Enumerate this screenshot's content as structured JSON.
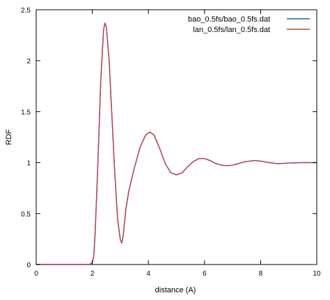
{
  "chart_data": {
    "type": "line",
    "title": "",
    "xlabel": "distance (A)",
    "ylabel": "RDF",
    "xlim": [
      0,
      10
    ],
    "ylim": [
      0,
      2.5
    ],
    "x_ticks": [
      0,
      2,
      4,
      6,
      8,
      10
    ],
    "y_ticks": [
      0,
      0.5,
      1,
      1.5,
      2,
      2.5
    ],
    "x_tick_labels": [
      "0",
      "2",
      "4",
      "6",
      "8",
      "10"
    ],
    "y_tick_labels": [
      "0",
      "0.5",
      "1",
      "1.5",
      "2",
      "2.5"
    ],
    "grid": false,
    "legend_position": "top-right",
    "series": [
      {
        "name": "bao_0.5fs/bao_0.5fs.dat",
        "color": "#1f5fa8",
        "x": [
          0,
          1.9,
          2.0,
          2.05,
          2.1,
          2.2,
          2.3,
          2.4,
          2.45,
          2.5,
          2.6,
          2.7,
          2.8,
          2.9,
          3.0,
          3.05,
          3.1,
          3.2,
          3.3,
          3.5,
          3.7,
          3.9,
          4.05,
          4.2,
          4.4,
          4.6,
          4.8,
          5.0,
          5.2,
          5.4,
          5.6,
          5.8,
          6.0,
          6.2,
          6.4,
          6.6,
          6.8,
          7.0,
          7.2,
          7.4,
          7.6,
          7.8,
          8.0,
          8.3,
          8.6,
          9.0,
          9.5,
          10.0
        ],
        "values": [
          0,
          0,
          0.02,
          0.08,
          0.3,
          1.0,
          1.8,
          2.3,
          2.37,
          2.33,
          2.0,
          1.45,
          0.9,
          0.45,
          0.24,
          0.21,
          0.28,
          0.55,
          0.72,
          0.95,
          1.15,
          1.27,
          1.3,
          1.27,
          1.14,
          0.99,
          0.9,
          0.88,
          0.9,
          0.96,
          1.01,
          1.04,
          1.04,
          1.02,
          0.99,
          0.975,
          0.97,
          0.975,
          0.99,
          1.005,
          1.015,
          1.02,
          1.015,
          1.0,
          0.99,
          0.995,
          1.0,
          1.0
        ]
      },
      {
        "name": "lan_0.5fs/lan_0.5fs.dat",
        "color": "#c0404a",
        "x": [
          0,
          1.9,
          2.0,
          2.05,
          2.1,
          2.2,
          2.3,
          2.4,
          2.45,
          2.5,
          2.6,
          2.7,
          2.8,
          2.9,
          3.0,
          3.05,
          3.1,
          3.2,
          3.3,
          3.5,
          3.7,
          3.9,
          4.05,
          4.2,
          4.4,
          4.6,
          4.8,
          5.0,
          5.2,
          5.4,
          5.6,
          5.8,
          6.0,
          6.2,
          6.4,
          6.6,
          6.8,
          7.0,
          7.2,
          7.4,
          7.6,
          7.8,
          8.0,
          8.3,
          8.6,
          9.0,
          9.5,
          10.0
        ],
        "values": [
          0,
          0,
          0.02,
          0.08,
          0.3,
          1.0,
          1.8,
          2.3,
          2.37,
          2.33,
          2.0,
          1.45,
          0.9,
          0.45,
          0.24,
          0.21,
          0.28,
          0.55,
          0.72,
          0.95,
          1.15,
          1.27,
          1.3,
          1.27,
          1.14,
          0.99,
          0.9,
          0.88,
          0.9,
          0.96,
          1.01,
          1.04,
          1.04,
          1.02,
          0.99,
          0.975,
          0.97,
          0.975,
          0.99,
          1.005,
          1.015,
          1.02,
          1.015,
          1.0,
          0.99,
          0.995,
          1.0,
          1.0
        ]
      }
    ]
  }
}
